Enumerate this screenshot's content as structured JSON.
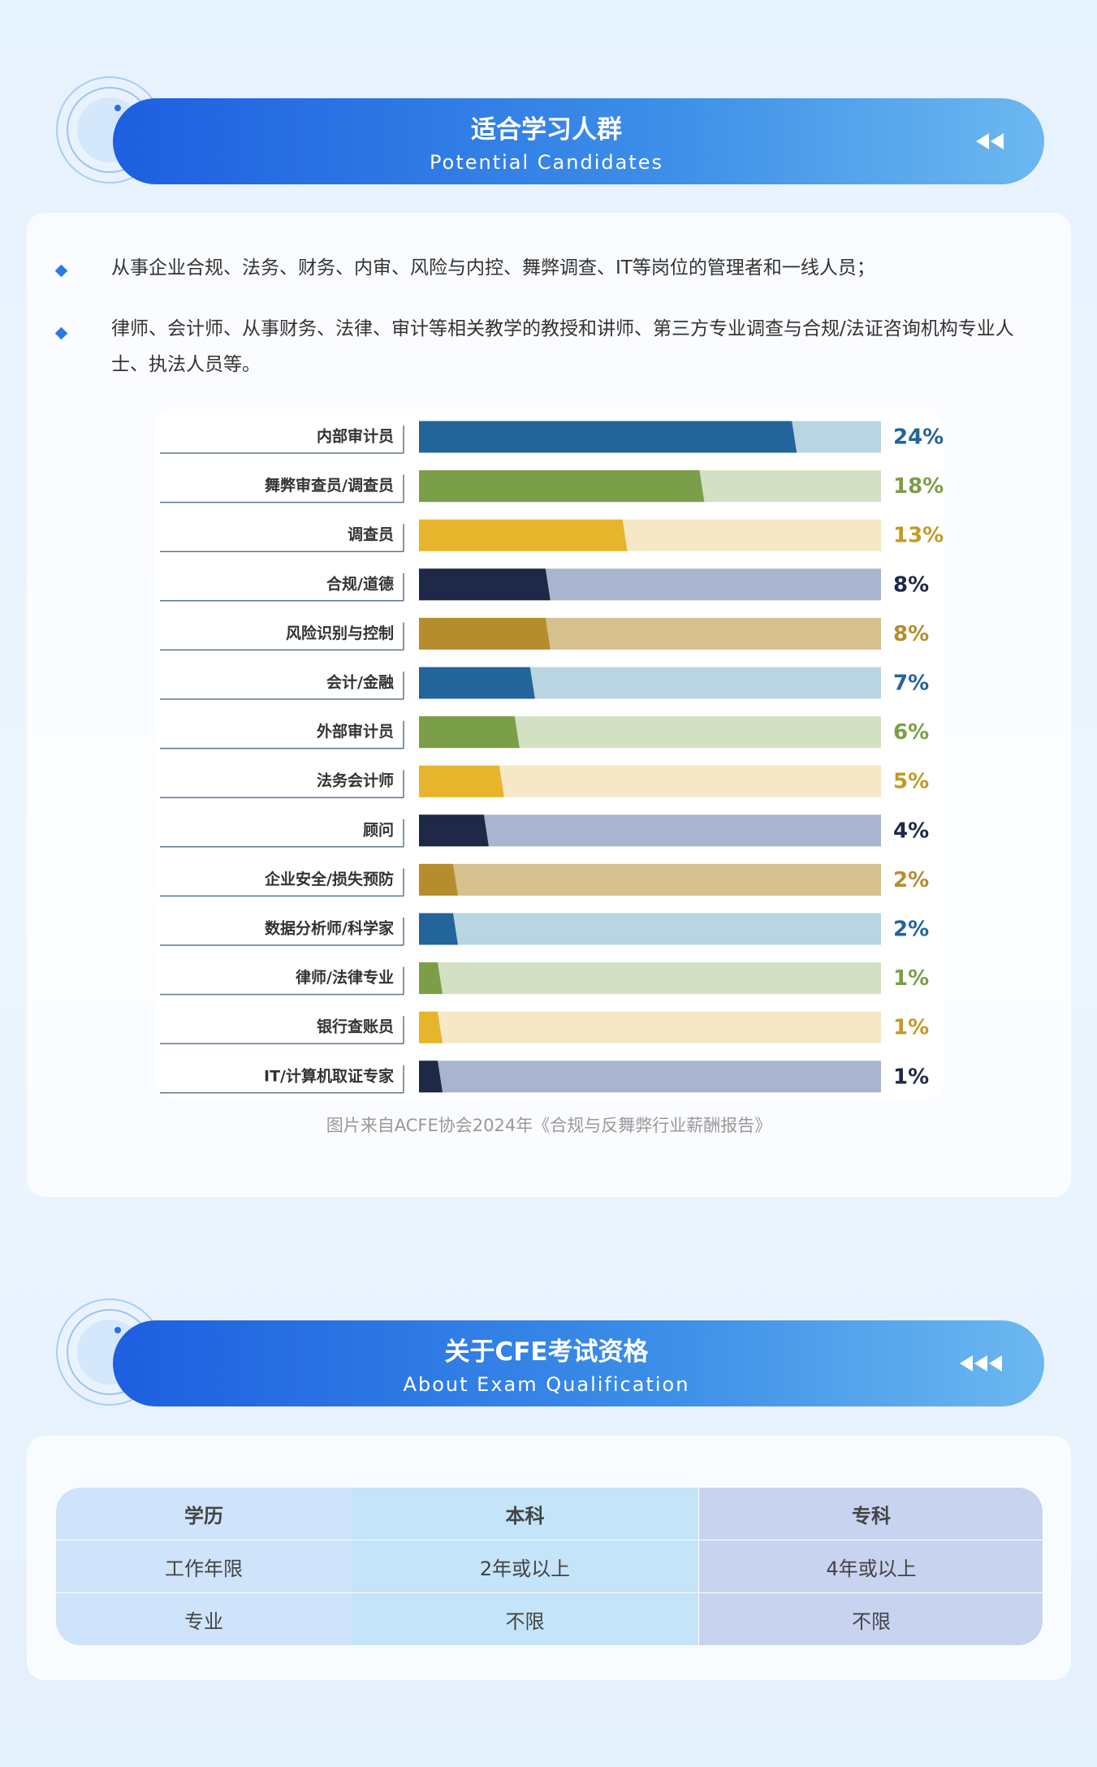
{
  "section1": {
    "title": "适合学习人群",
    "subtitle": "Potential Candidates",
    "bullets": [
      "从事企业合规、法务、财务、内审、风险与内控、舞弊调查、IT等岗位的管理者和一线人员；",
      "律师、会计师、从事财务、法律、审计等相关教学的教授和讲师、第三方专业调查与合规/法证咨询机构专业人士、执法人员等。"
    ],
    "chart_data": {
      "type": "bar",
      "orientation": "horizontal",
      "categories": [
        "内部审计员",
        "舞弊审查员/调查员",
        "调查员",
        "合规/道德",
        "风险识别与控制",
        "会计/金融",
        "外部审计员",
        "法务会计师",
        "顾问",
        "企业安全/损失预防",
        "数据分析师/科学家",
        "律师/法律专业",
        "银行查账员",
        "IT/计算机取证专家"
      ],
      "values": [
        24,
        18,
        13,
        8,
        8,
        7,
        6,
        5,
        4,
        2,
        2,
        1,
        1,
        1
      ],
      "value_labels": [
        "24%",
        "18%",
        "13%",
        "8%",
        "8%",
        "7%",
        "6%",
        "5%",
        "4%",
        "2%",
        "2%",
        "1%",
        "1%",
        "1%"
      ],
      "colors": [
        "#23649a",
        "#7b9e48",
        "#e6b52c",
        "#1f2846",
        "#b58d2c"
      ],
      "track_colors": [
        "#b8d5e1",
        "#d3e0c4",
        "#f6e8c6",
        "#a9b4cf",
        "#d6c08e"
      ],
      "xlim": [
        0,
        30
      ]
    },
    "caption": "图片来自ACFE协会2024年《合规与反舞弊行业薪酬报告》"
  },
  "section2": {
    "title": "关于CFE考试资格",
    "subtitle": "About Exam Qualification",
    "table": {
      "header": [
        "学历",
        "本科",
        "专科"
      ],
      "rows": [
        [
          "工作年限",
          "2年或以上",
          "4年或以上"
        ],
        [
          "专业",
          "不限",
          "不限"
        ]
      ]
    }
  }
}
